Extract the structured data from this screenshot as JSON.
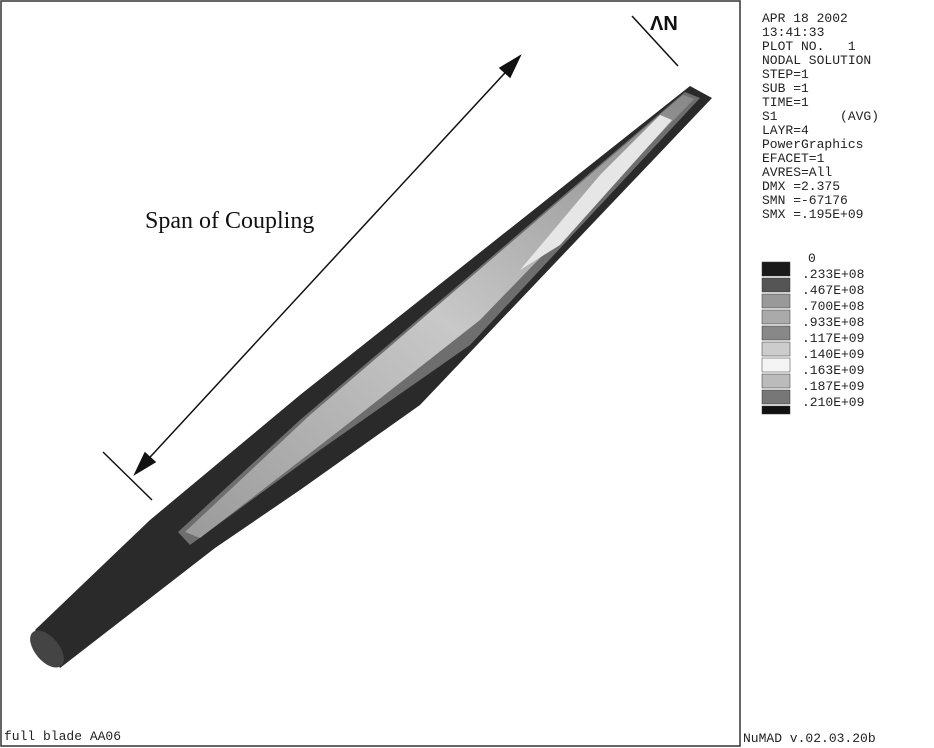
{
  "logo": "ΛN",
  "annotation": "Span of Coupling",
  "caption": "full blade AA06",
  "version": "NuMAD v.02.03.20b",
  "info": [
    "APR 18 2002",
    "13:41:33",
    "PLOT NO.   1",
    "NODAL SOLUTION",
    "STEP=1",
    "SUB =1",
    "TIME=1",
    "S1        (AVG)",
    "LAYR=4",
    "PowerGraphics",
    "EFACET=1",
    "AVRES=All",
    "DMX =2.375",
    "SMN =-67176",
    "SMX =.195E+09"
  ],
  "legend": [
    "0",
    ".233E+08",
    ".467E+08",
    ".700E+08",
    ".933E+08",
    ".117E+09",
    ".140E+09",
    ".163E+09",
    ".187E+09",
    ".210E+09"
  ]
}
